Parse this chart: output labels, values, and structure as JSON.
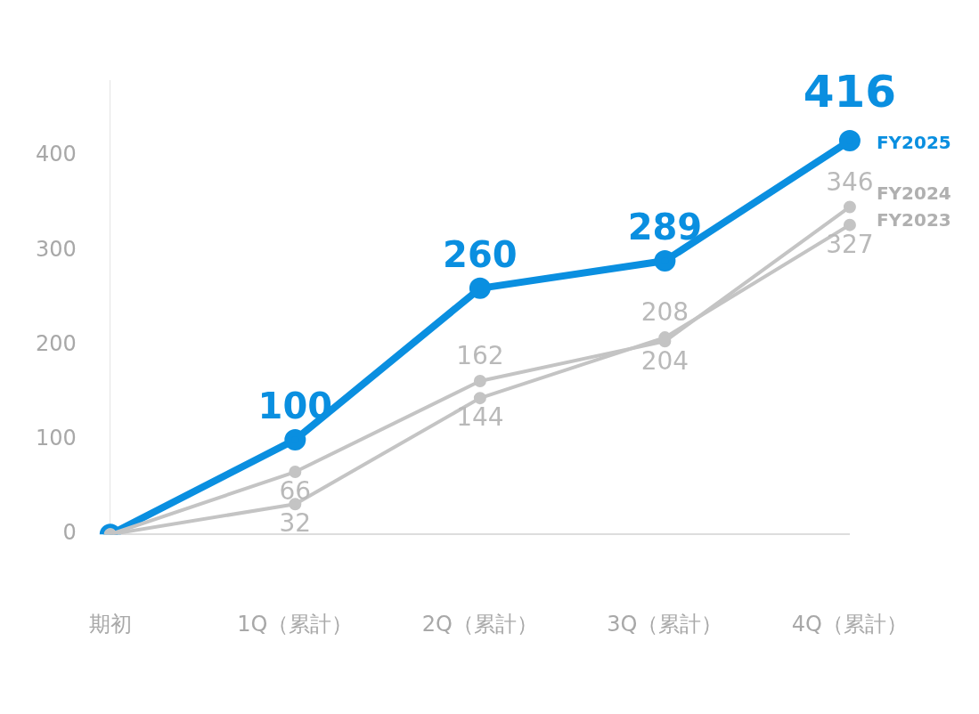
{
  "chart_data": {
    "type": "line",
    "categories": [
      "期初",
      "1Q（累計）",
      "2Q（累計）",
      "3Q（累計）",
      "4Q（累計）"
    ],
    "series": [
      {
        "name": "FY2025",
        "color": "#0a8fe0",
        "values": [
          0,
          100,
          260,
          289,
          416
        ],
        "value_labels": [
          null,
          "100",
          "260",
          "289",
          "416"
        ]
      },
      {
        "name": "FY2024",
        "color": "#c4c4c4",
        "values": [
          0,
          66,
          162,
          204,
          346
        ],
        "value_labels": [
          null,
          "66",
          "162",
          "204",
          "346"
        ]
      },
      {
        "name": "FY2023",
        "color": "#c4c4c4",
        "values": [
          0,
          32,
          144,
          208,
          327
        ],
        "value_labels": [
          null,
          "32",
          "144",
          "208",
          "327"
        ]
      }
    ],
    "ylim": [
      0,
      480
    ],
    "yticks": [
      0,
      100,
      200,
      300,
      400
    ],
    "grid": false,
    "legend": "right",
    "marker": "circle",
    "line_style": "solid"
  }
}
